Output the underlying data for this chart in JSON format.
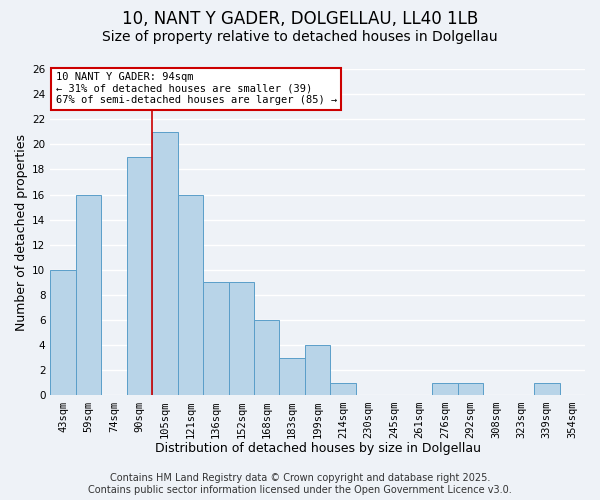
{
  "title": "10, NANT Y GADER, DOLGELLAU, LL40 1LB",
  "subtitle": "Size of property relative to detached houses in Dolgellau",
  "xlabel": "Distribution of detached houses by size in Dolgellau",
  "ylabel": "Number of detached properties",
  "bin_labels": [
    "43sqm",
    "59sqm",
    "74sqm",
    "90sqm",
    "105sqm",
    "121sqm",
    "136sqm",
    "152sqm",
    "168sqm",
    "183sqm",
    "199sqm",
    "214sqm",
    "230sqm",
    "245sqm",
    "261sqm",
    "276sqm",
    "292sqm",
    "308sqm",
    "323sqm",
    "339sqm",
    "354sqm"
  ],
  "bar_values": [
    10,
    16,
    0,
    19,
    21,
    16,
    9,
    9,
    6,
    3,
    4,
    1,
    0,
    0,
    0,
    1,
    1,
    0,
    0,
    1,
    0
  ],
  "bar_color": "#b8d4e8",
  "bar_edge_color": "#5a9ec9",
  "vline_x_index": 3,
  "vline_color": "#cc0000",
  "ylim": [
    0,
    26
  ],
  "yticks": [
    0,
    2,
    4,
    6,
    8,
    10,
    12,
    14,
    16,
    18,
    20,
    22,
    24,
    26
  ],
  "annotation_line1": "10 NANT Y GADER: 94sqm",
  "annotation_line2": "← 31% of detached houses are smaller (39)",
  "annotation_line3": "67% of semi-detached houses are larger (85) →",
  "footer_line1": "Contains HM Land Registry data © Crown copyright and database right 2025.",
  "footer_line2": "Contains public sector information licensed under the Open Government Licence v3.0.",
  "background_color": "#eef2f7",
  "grid_color": "#ffffff",
  "title_fontsize": 12,
  "subtitle_fontsize": 10,
  "axis_label_fontsize": 9,
  "tick_fontsize": 7.5,
  "footer_fontsize": 7
}
